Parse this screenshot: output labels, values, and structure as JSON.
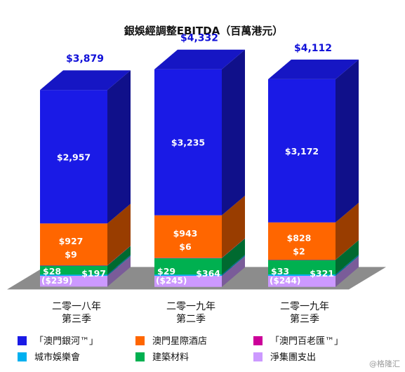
{
  "chart_data": {
    "type": "bar",
    "stacked": true,
    "three_d": true,
    "title": "銀娛經調整EBITDA（百萬港元）",
    "categories": [
      [
        "二零一八年",
        "第三季"
      ],
      [
        "二零一九年",
        "第二季"
      ],
      [
        "二零一九年",
        "第三季"
      ]
    ],
    "totals": [
      "$3,879",
      "$4,332",
      "$4,112"
    ],
    "series": [
      {
        "name": "「澳門銀河™」",
        "color": "#1a1ae6",
        "values": [
          2957,
          3235,
          3172
        ],
        "labels": [
          "$2,957",
          "$3,235",
          "$3,172"
        ]
      },
      {
        "name": "澳門星際酒店",
        "color": "#ff6600",
        "values": [
          927,
          943,
          828
        ],
        "labels": [
          "$927",
          "$943",
          "$828"
        ]
      },
      {
        "name": "「澳門百老匯™」",
        "color": "#cc0099",
        "values": [
          9,
          6,
          2
        ],
        "labels": [
          "$9",
          "$6",
          "$2"
        ]
      },
      {
        "name": "城市娛樂會",
        "color": "#00b0f0",
        "values": [
          28,
          29,
          33
        ],
        "labels": [
          "$28",
          "$29",
          "$33"
        ]
      },
      {
        "name": "建築材料",
        "color": "#00b050",
        "values": [
          197,
          364,
          321
        ],
        "labels": [
          "$197",
          "$364",
          "$321"
        ]
      },
      {
        "name": "淨集團支出",
        "color": "#cc99ff",
        "values": [
          -239,
          -245,
          -244
        ],
        "labels": [
          "($239)",
          "($245)",
          "($244)"
        ]
      }
    ]
  },
  "watermark": "@格隆汇"
}
